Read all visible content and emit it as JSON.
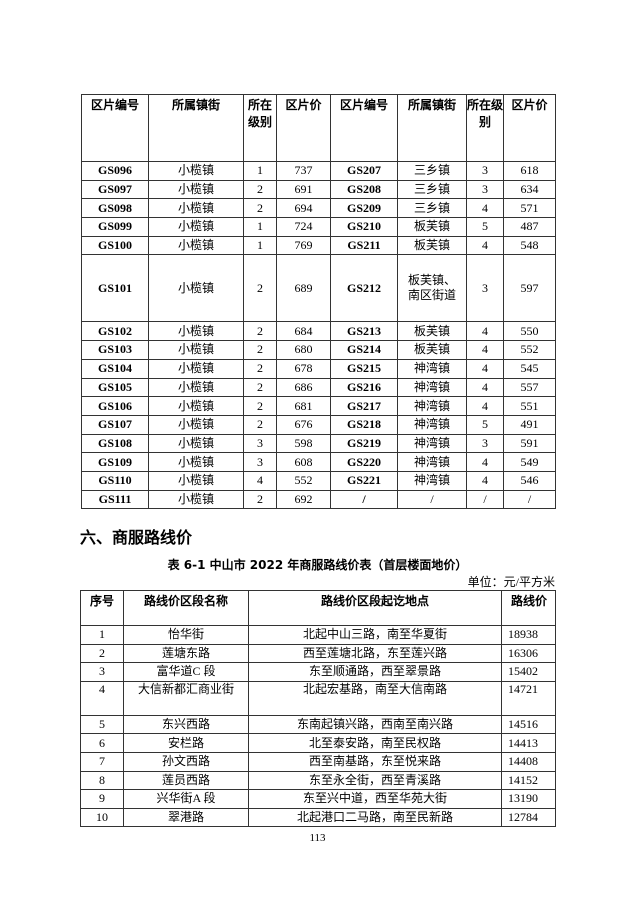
{
  "table1": {
    "headers": [
      "区片编号",
      "所属镇街",
      "所在级别",
      "区片价",
      "区片编号",
      "所属镇街",
      "所在级别",
      "区片价"
    ],
    "rows": [
      [
        "GS096",
        "小榄镇",
        "1",
        "737",
        "GS207",
        "三乡镇",
        "3",
        "618"
      ],
      [
        "GS097",
        "小榄镇",
        "2",
        "691",
        "GS208",
        "三乡镇",
        "3",
        "634"
      ],
      [
        "GS098",
        "小榄镇",
        "2",
        "694",
        "GS209",
        "三乡镇",
        "4",
        "571"
      ],
      [
        "GS099",
        "小榄镇",
        "1",
        "724",
        "GS210",
        "板芙镇",
        "5",
        "487"
      ],
      [
        "GS100",
        "小榄镇",
        "1",
        "769",
        "GS211",
        "板芙镇",
        "4",
        "548"
      ],
      [
        "GS101",
        "小榄镇",
        "2",
        "689",
        "GS212",
        "板芙镇、南区街道",
        "3",
        "597"
      ],
      [
        "GS102",
        "小榄镇",
        "2",
        "684",
        "GS213",
        "板芙镇",
        "4",
        "550"
      ],
      [
        "GS103",
        "小榄镇",
        "2",
        "680",
        "GS214",
        "板芙镇",
        "4",
        "552"
      ],
      [
        "GS104",
        "小榄镇",
        "2",
        "678",
        "GS215",
        "神湾镇",
        "4",
        "545"
      ],
      [
        "GS105",
        "小榄镇",
        "2",
        "686",
        "GS216",
        "神湾镇",
        "4",
        "557"
      ],
      [
        "GS106",
        "小榄镇",
        "2",
        "681",
        "GS217",
        "神湾镇",
        "4",
        "551"
      ],
      [
        "GS107",
        "小榄镇",
        "2",
        "676",
        "GS218",
        "神湾镇",
        "5",
        "491"
      ],
      [
        "GS108",
        "小榄镇",
        "3",
        "598",
        "GS219",
        "神湾镇",
        "3",
        "591"
      ],
      [
        "GS109",
        "小榄镇",
        "3",
        "608",
        "GS220",
        "神湾镇",
        "4",
        "549"
      ],
      [
        "GS110",
        "小榄镇",
        "4",
        "552",
        "GS221",
        "神湾镇",
        "4",
        "546"
      ],
      [
        "GS111",
        "小榄镇",
        "2",
        "692",
        "/",
        "/",
        "/",
        "/"
      ]
    ]
  },
  "section_heading": "六、商服路线价",
  "table2": {
    "caption": "表 6-1  中山市 2022 年商服路线价表（首层楼面地价）",
    "unit": "单位：元/平方米",
    "headers": [
      "序号",
      "路线价区段名称",
      "路线价区段起讫地点",
      "路线价"
    ],
    "rows": [
      [
        "1",
        "怡华街",
        "北起中山三路，南至华夏街",
        "18938"
      ],
      [
        "2",
        "莲塘东路",
        "西至莲塘北路，东至莲兴路",
        "16306"
      ],
      [
        "3",
        "富华道C 段",
        "东至顺通路，西至翠景路",
        "15402"
      ],
      [
        "4",
        "大信新都汇商业街",
        "北起宏基路，南至大信南路",
        "14721"
      ],
      [
        "5",
        "东兴西路",
        "东南起镇兴路，西南至南兴路",
        "14516"
      ],
      [
        "6",
        "安栏路",
        "北至泰安路，南至民权路",
        "14413"
      ],
      [
        "7",
        "孙文西路",
        "西至南基路，东至悦来路",
        "14408"
      ],
      [
        "8",
        "莲员西路",
        "东至永全街，西至青溪路",
        "14152"
      ],
      [
        "9",
        "兴华街A 段",
        "东至兴中道，西至华苑大街",
        "13190"
      ],
      [
        "10",
        "翠港路",
        "北起港口二马路，南至民新路",
        "12784"
      ]
    ]
  },
  "page_number": "113"
}
